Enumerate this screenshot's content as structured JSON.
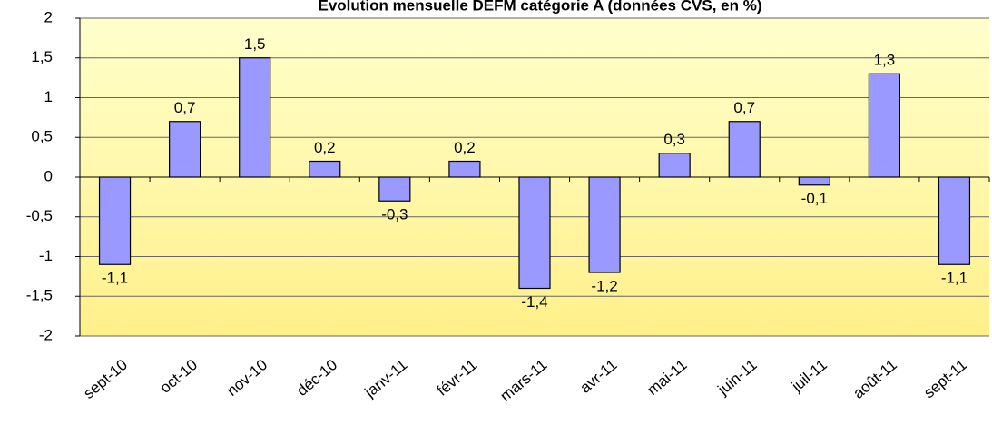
{
  "chart_data": {
    "type": "bar",
    "title": "Evolution mensuelle DEFM catégorie A (données CVS, en %)",
    "categories": [
      "sept-10",
      "oct-10",
      "nov-10",
      "déc-10",
      "janv-11",
      "févr-11",
      "mars-11",
      "avr-11",
      "mai-11",
      "juin-11",
      "juil-11",
      "août-11",
      "sept-11"
    ],
    "values": [
      -1.1,
      0.7,
      1.5,
      0.2,
      -0.3,
      0.2,
      -1.4,
      -1.2,
      0.3,
      0.7,
      -0.1,
      1.3,
      -1.1
    ],
    "value_labels": [
      "-1,1",
      "0,7",
      "1,5",
      "0,2",
      "-0,3",
      "0,2",
      "-1,4",
      "-1,2",
      "0,3",
      "0,7",
      "-0,1",
      "1,3",
      "-1,1"
    ],
    "color": "#9999ff",
    "ylim": [
      -2,
      2
    ],
    "yticks": [
      -2,
      {
        "value": -1.5,
        "label": "-1,5"
      },
      -1,
      {
        "value": -0.5,
        "label": "-0,5"
      },
      0,
      {
        "value": 0.5,
        "label": "0,5"
      },
      1,
      {
        "value": 1.5,
        "label": "1,5"
      },
      2
    ],
    "grid": true
  }
}
